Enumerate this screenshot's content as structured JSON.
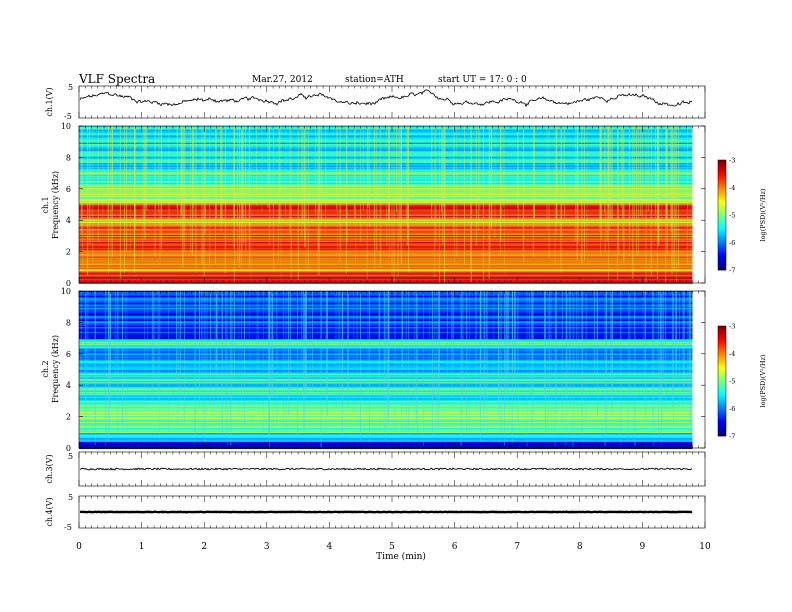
{
  "header": {
    "title": "VLF  Spectra",
    "date": "Mar.27, 2012",
    "station": "station=ATH",
    "start_ut": "start  UT  =    17: 0  : 0"
  },
  "chart_data": [
    {
      "type": "line",
      "panel": "ch1-waveform",
      "ylabel": "ch.1(V)",
      "ylim": [
        -5,
        5
      ],
      "y_ticks": [
        "5",
        "-5"
      ],
      "x_range": [
        0,
        9.8
      ],
      "trace": "noisy waveform oscillating roughly between -2 and 3 V",
      "color": "#000000"
    },
    {
      "type": "heatmap",
      "panel": "ch1-spectrogram",
      "ylabel": "ch.1",
      "ylabel2": "Frequency  (kHz)",
      "ylim": [
        0,
        10
      ],
      "y_ticks": [
        "0",
        "2",
        "4",
        "6",
        "8",
        "10"
      ],
      "colorbar": {
        "label": "log(PSD)(V²/Hz)",
        "range": [
          -7,
          -3
        ],
        "ticks": [
          "-3",
          "-4",
          "-5",
          "-6",
          "-7"
        ]
      },
      "bands": [
        {
          "from": 0,
          "to": 0.8,
          "log_psd": -3.6
        },
        {
          "from": 0.8,
          "to": 1.2,
          "log_psd": -4.1
        },
        {
          "from": 1.2,
          "to": 3.6,
          "log_psd": -3.8
        },
        {
          "from": 3.6,
          "to": 4.2,
          "log_psd": -4.3
        },
        {
          "from": 4.2,
          "to": 5.1,
          "log_psd": -3.7
        },
        {
          "from": 5.1,
          "to": 6.2,
          "log_psd": -4.9
        },
        {
          "from": 6.2,
          "to": 7.2,
          "log_psd": -5.2
        },
        {
          "from": 7.2,
          "to": 10,
          "log_psd": -5.6
        }
      ]
    },
    {
      "type": "heatmap",
      "panel": "ch2-spectrogram",
      "ylabel": "ch.2",
      "ylabel2": "Frequency  (kHz)",
      "ylim": [
        0,
        10
      ],
      "y_ticks": [
        "0",
        "2",
        "4",
        "6",
        "8",
        "10"
      ],
      "colorbar": {
        "label": "log(PSD)(V²/Hz)",
        "range": [
          -7,
          -3
        ],
        "ticks": [
          "-3",
          "-4",
          "-5",
          "-6",
          "-7"
        ]
      },
      "bands": [
        {
          "from": 0,
          "to": 0.4,
          "log_psd": -6.8
        },
        {
          "from": 0.4,
          "to": 1.0,
          "log_psd": -5.6
        },
        {
          "from": 1.0,
          "to": 2.8,
          "log_psd": -5.0
        },
        {
          "from": 2.8,
          "to": 4.8,
          "log_psd": -5.4
        },
        {
          "from": 4.8,
          "to": 6.4,
          "log_psd": -5.9
        },
        {
          "from": 6.4,
          "to": 7.0,
          "log_psd": -5.3
        },
        {
          "from": 7.0,
          "to": 10,
          "log_psd": -6.3
        }
      ]
    },
    {
      "type": "line",
      "panel": "ch3-waveform",
      "ylabel": "ch.3(V)",
      "ylim": [
        -5,
        5
      ],
      "y_ticks": [
        "5"
      ],
      "x_range": [
        0,
        9.8
      ],
      "trace": "flat noisy line near 0 V",
      "color": "#000000"
    },
    {
      "type": "line",
      "panel": "ch4-waveform",
      "ylabel": "ch.4(V)",
      "ylim": [
        -5,
        5
      ],
      "y_ticks": [
        "5",
        "-5"
      ],
      "x_range": [
        0,
        9.8
      ],
      "trace": "flat thick line near 0 V",
      "color": "#000000"
    }
  ],
  "x_axis": {
    "label": "Time  (min)",
    "ticks": [
      "0",
      "1",
      "2",
      "3",
      "4",
      "5",
      "6",
      "7",
      "8",
      "9",
      "10"
    ],
    "range": [
      0,
      10
    ]
  },
  "colorbar_label": "log(PSD)(V²/Hz)"
}
